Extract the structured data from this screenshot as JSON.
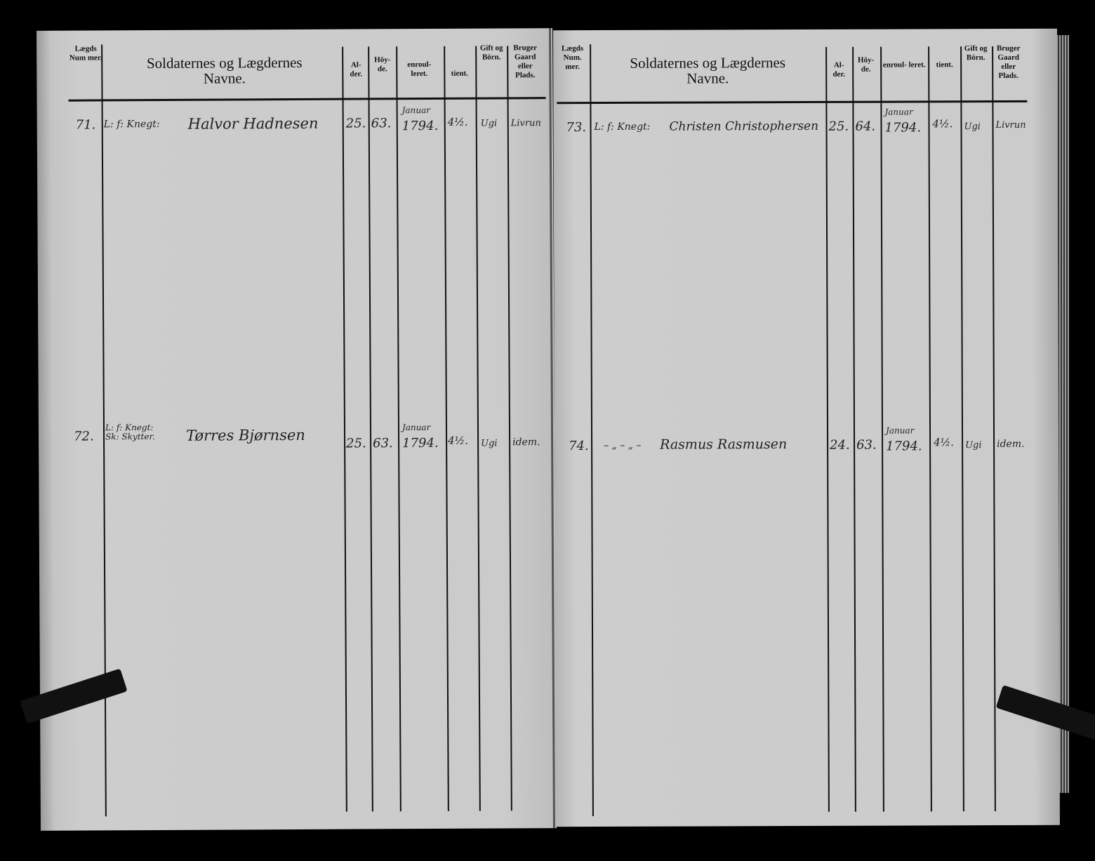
{
  "header": {
    "num": "Lægds Num mer.",
    "num_right": "Lægds Num. mer.",
    "title_line1": "Soldaternes og Lægdernes",
    "title_line2": "Navne.",
    "alder": "Al- der.",
    "hoyde": "Höy- de.",
    "enrolleret": "enroul- leret.",
    "tient": "tient.",
    "gift": "Gift og Börn.",
    "bruger": "Bruger Gaard eller Plads."
  },
  "left_rows": [
    {
      "num": "71.",
      "prefix": "L: f: Knegt:",
      "name": "Halvor Hadnesen",
      "alder": "25.",
      "hoyde": "63.",
      "month": "Januar",
      "year": "1794.",
      "tient": "4½.",
      "gift": "Ugi",
      "bruger": "Livrun"
    },
    {
      "num": "72.",
      "prefix": "L: f: Knegt: Sk: Skytter.",
      "name": "Tørres Bjørnsen",
      "alder": "25.",
      "hoyde": "63.",
      "month": "Januar",
      "year": "1794.",
      "tient": "4½.",
      "gift": "Ugi",
      "bruger": "idem."
    }
  ],
  "right_rows": [
    {
      "num": "73.",
      "prefix": "L: f: Knegt:",
      "name": "Christen Christophersen",
      "alder": "25.",
      "hoyde": "64.",
      "month": "Januar",
      "year": "1794.",
      "tient": "4½.",
      "gift": "Ugi",
      "bruger": "Livrun"
    },
    {
      "num": "74.",
      "prefix": "– „ – „ –",
      "name": "Rasmus Rasmusen",
      "alder": "24.",
      "hoyde": "63.",
      "month": "Januar",
      "year": "1794.",
      "tient": "4½.",
      "gift": "Ugi",
      "bruger": "idem."
    }
  ]
}
